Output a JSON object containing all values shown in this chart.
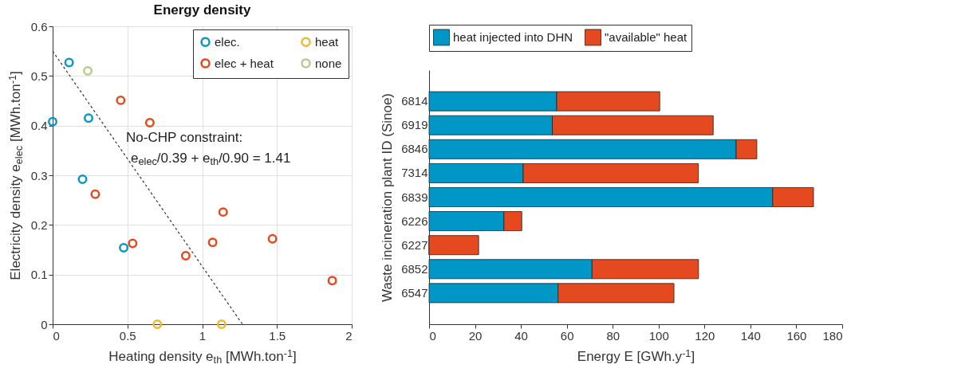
{
  "chart_data": [
    {
      "type": "scatter",
      "title": "Energy density",
      "xlabel": "Heating density e$_{th}$ [MWh.ton$^{-1}$]",
      "ylabel": "Electricity density e$_{elec}$ [MWh.ton$^{-1}$]",
      "xlim": [
        0,
        2
      ],
      "ylim": [
        0,
        0.6
      ],
      "xticks": [
        0,
        0.5,
        1,
        1.5,
        2
      ],
      "yticks": [
        0,
        0.1,
        0.2,
        0.3,
        0.4,
        0.5,
        0.6
      ],
      "grid": true,
      "legend": "top right",
      "marker": "circle",
      "series": [
        {
          "name": "elec.",
          "color": "#0b97c7",
          "x": [
            0.11,
            0,
            0.24,
            0.2,
            0.475
          ],
          "values": [
            0.527,
            0.408,
            0.415,
            0.292,
            0.154
          ]
        },
        {
          "name": "elec + heat",
          "color": "#e4491f",
          "x": [
            0.455,
            0.65,
            0.285,
            0.535,
            1.14,
            0.89,
            1.07,
            1.47,
            1.87
          ],
          "values": [
            0.451,
            0.406,
            0.262,
            0.163,
            0.226,
            0.138,
            0.165,
            0.172,
            0.088
          ]
        },
        {
          "name": "heat",
          "color": "#f2b92c",
          "x": [
            0.7,
            1.13
          ],
          "values": [
            0,
            0
          ]
        },
        {
          "name": "none",
          "color": "#b6cc8c",
          "x": [
            0.235
          ],
          "values": [
            0.51
          ]
        },
        {
          "type": "line",
          "color": "#333333",
          "line_style": "dashed",
          "marker": "none",
          "x": [
            0,
            1.269
          ],
          "values": [
            0.55,
            0
          ]
        }
      ],
      "annotations": [
        "No-CHP constraint:",
        "e$_{elec}$/0.39 + e$_{th}$/0.90 = 1.41"
      ]
    },
    {
      "type": "bar",
      "orientation": "horizontal",
      "stacked": true,
      "xlabel": "Energy E [GWh.y$^{-1}$]",
      "ylabel": "Waste incineration plant ID (Sinoe)",
      "categories": [
        "6814",
        "6919",
        "6846",
        "7314",
        "6839",
        "6226",
        "6227",
        "6852",
        "6547"
      ],
      "xlim": [
        0,
        180
      ],
      "xticks": [
        0,
        20,
        40,
        60,
        80,
        100,
        120,
        140,
        160,
        180
      ],
      "grid": false,
      "legend": "top",
      "series": [
        {
          "name": "heat injected into DHN",
          "color": "#0096c6",
          "values": [
            55.6,
            53.7,
            133.8,
            41,
            149.7,
            32.6,
            0,
            71,
            56.2
          ]
        },
        {
          "name": "\"available\" heat",
          "color": "#e4491f",
          "values": [
            44.9,
            70.1,
            9,
            76.3,
            17.8,
            7.8,
            21.6,
            46.4,
            50.5
          ]
        }
      ]
    }
  ]
}
